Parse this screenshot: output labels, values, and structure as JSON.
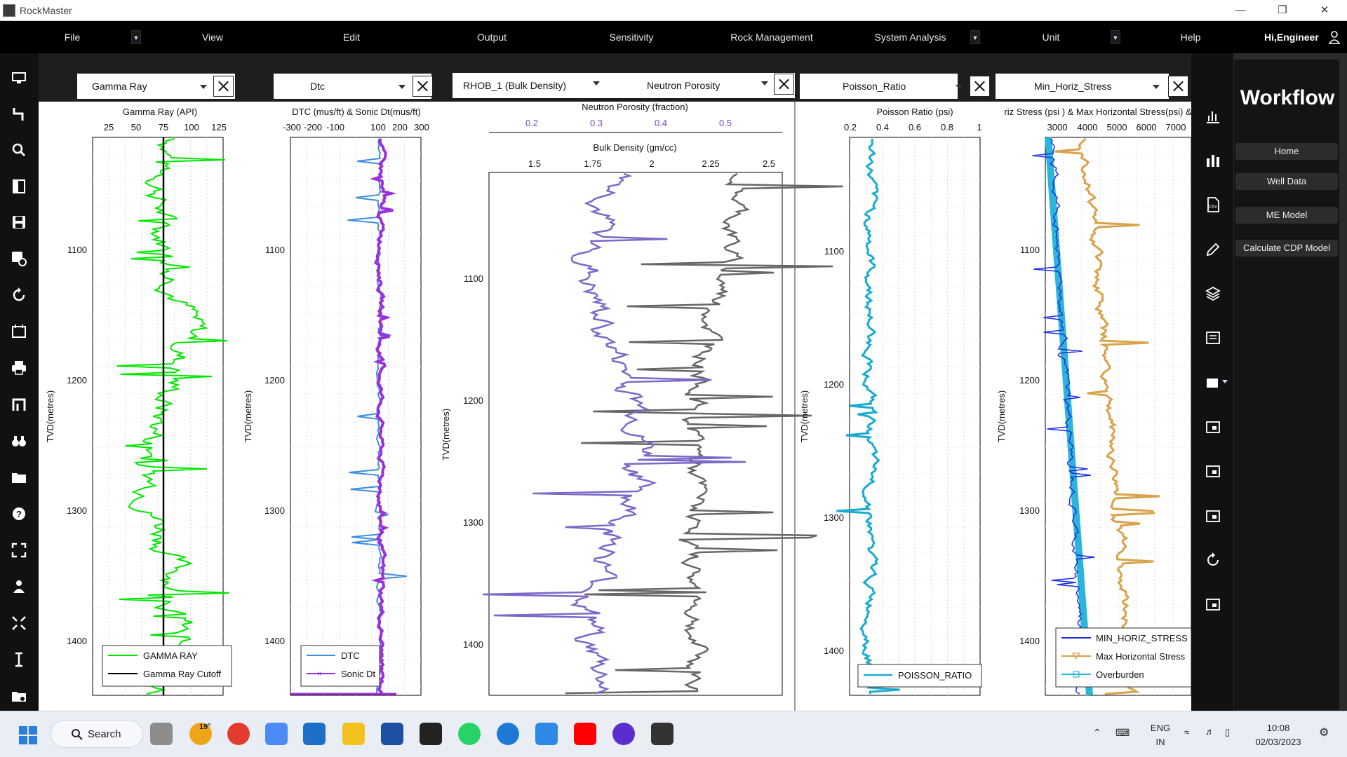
{
  "app": {
    "title": "RockMaster"
  },
  "menu": {
    "items": [
      "File",
      "View",
      "Edit",
      "Output",
      "Sensitivity",
      "Rock Management",
      "System Analysis",
      "Unit",
      "Help"
    ],
    "greeting": "Hi,Engineer"
  },
  "workflow": {
    "title": "Workflow",
    "buttons": [
      "Home",
      "Well Data",
      "ME Model",
      "Calculate CDP Model"
    ]
  },
  "tracks": {
    "gamma": {
      "select": "Gamma Ray",
      "axis_title": "Gamma Ray (API)",
      "ticks": [
        "25",
        "50",
        "75",
        "100",
        "125"
      ],
      "legend": [
        "GAMMA RAY",
        "Gamma Ray Cutoff"
      ],
      "colors": [
        "#00e600",
        "#000000"
      ]
    },
    "dtc": {
      "select": "Dtc",
      "axis_title": "DTC (mus/ft) & Sonic Dt(mus/ft)",
      "ticks": [
        "-300",
        "-200",
        "-100",
        "100",
        "200",
        "300"
      ],
      "legend": [
        "DTC",
        "Sonic Dt"
      ],
      "colors": [
        "#3b8ede",
        "#9b30d9"
      ]
    },
    "density": {
      "select1": "RHOB_1 (Bulk Density)",
      "select2": "Neutron Porosity",
      "axis_title1": "Neutron Porosity (fraction)",
      "ticks1": [
        "0.2",
        "0.3",
        "0.4",
        "0.5"
      ],
      "axis_title2": "Bulk Density (gm/cc)",
      "ticks2": [
        "1.5",
        "1.75",
        "2",
        "2.25",
        "2.5"
      ],
      "colors": [
        "#7b68c9",
        "#666666"
      ]
    },
    "poisson": {
      "select": "Poisson_Ratio",
      "axis_title": "Poisson Ratio (psi)",
      "ticks": [
        "0.2",
        "0.4",
        "0.6",
        "0.8",
        "1"
      ],
      "legend": [
        "POISSON_RATIO"
      ],
      "colors": [
        "#1aabcf"
      ]
    },
    "stress": {
      "select": "Min_Horiz_Stress",
      "axis_title": "riz Stress (psi ) & Max Horizontal Stress(psi) &",
      "ticks": [
        "3000",
        "4000",
        "5000",
        "6000",
        "7000"
      ],
      "legend": [
        "MIN_HORIZ_STRESS",
        "Max Horizontal Stress",
        "Overburden"
      ],
      "colors": [
        "#1f2ee0",
        "#d9a24b",
        "#2bb5d9"
      ]
    },
    "y_label": "TVD(metres)",
    "depth_ticks": [
      "1100",
      "1200",
      "1300",
      "1400"
    ],
    "depth_ticks_center": [
      "1100",
      "1200",
      "1300",
      "1400"
    ]
  },
  "taskbar": {
    "search": "Search",
    "weather": "19°",
    "lang1": "ENG",
    "lang2": "IN",
    "time": "10:08",
    "date": "02/03/2023"
  }
}
